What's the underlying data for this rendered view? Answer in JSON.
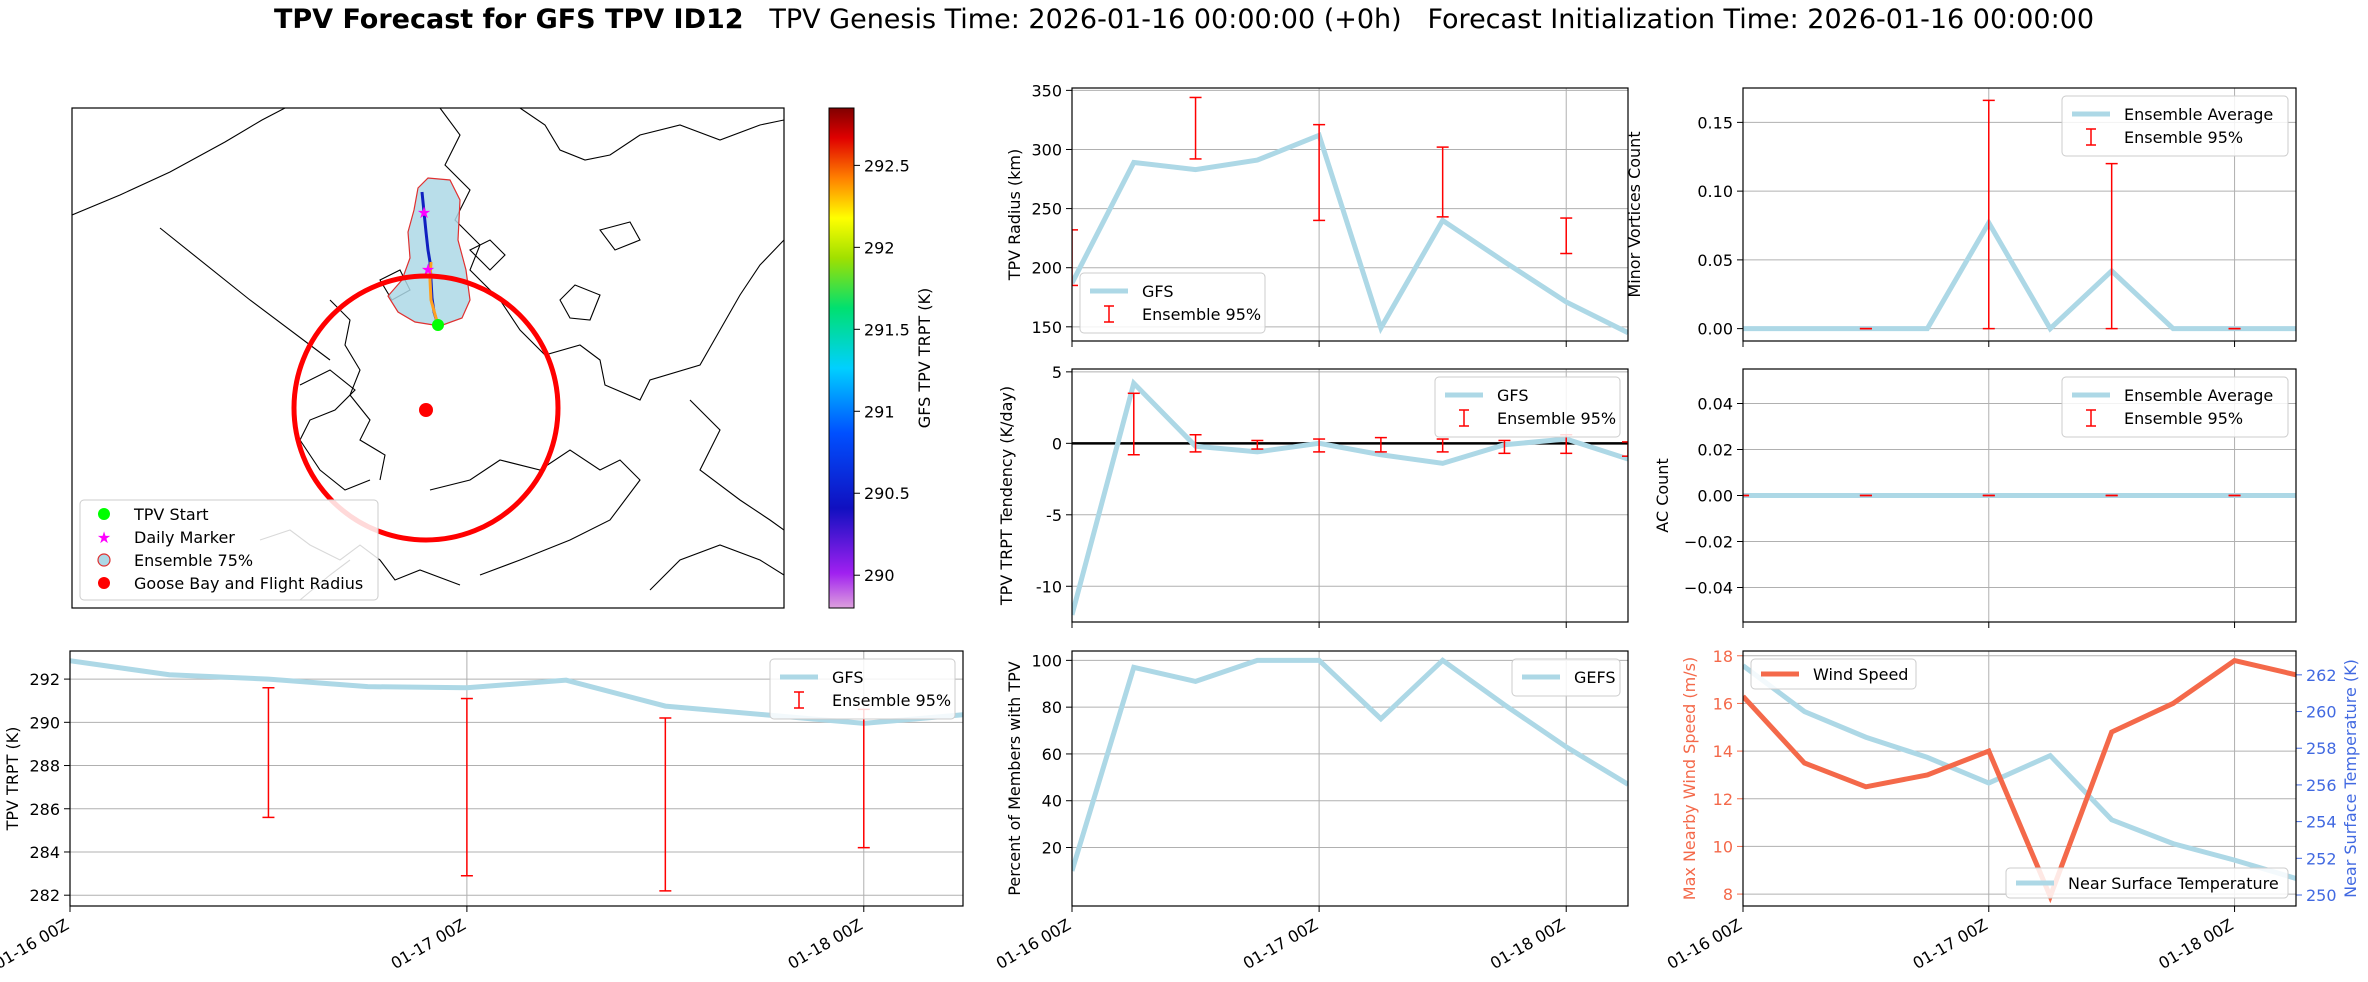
{
  "figure": {
    "title_bold": "TPV Forecast for GFS TPV ID12",
    "title_genesis": "TPV Genesis Time: 2026-01-16 00:00:00 (+0h)",
    "title_init": "Forecast Initialization Time: 2026-01-16 00:00:00"
  },
  "colors": {
    "gfs_line": "#add8e6",
    "ensemble_bar": "#ff0000",
    "wind": "#f4694a",
    "temperature_axis": "#4169e1",
    "flight_radius": "#ff0000",
    "tpv_start": "#00ff00",
    "daily_marker": "#ff00ff"
  },
  "chart_data": [
    {
      "id": "map",
      "type": "map",
      "colorbar": {
        "label": "GFS TPV TRPT (K)",
        "ticks": [
          290.0,
          290.5,
          291.0,
          291.5,
          292.0,
          292.5
        ],
        "range": [
          289.8,
          292.85
        ],
        "colormap": "rainbow"
      },
      "legend": {
        "position": "lower-left",
        "entries": [
          "TPV Start",
          "Daily Marker",
          "Ensemble 75%",
          "Goose Bay and Flight Radius"
        ]
      }
    },
    {
      "id": "radius",
      "type": "line",
      "xlabel": "",
      "ylabel": "TPV Radius (km)",
      "ylim": [
        138,
        352
      ],
      "yticks": [
        150,
        200,
        250,
        300,
        350
      ],
      "xlim": [
        0,
        54
      ],
      "series": [
        {
          "name": "GFS",
          "x": [
            0,
            6,
            12,
            18,
            24,
            30,
            36,
            42,
            48,
            54
          ],
          "values": [
            187,
            289,
            283,
            291,
            312,
            149,
            240,
            205,
            171,
            145
          ]
        }
      ],
      "errorbars": {
        "name": "Ensemble 95%",
        "x": [
          0,
          12,
          24,
          36,
          48
        ],
        "low": [
          185,
          292,
          240,
          243,
          212
        ],
        "high": [
          232,
          344,
          321,
          302,
          242
        ]
      },
      "legend": "lower-left",
      "grid": true
    },
    {
      "id": "minor",
      "type": "line",
      "xlabel": "",
      "ylabel": "Minor Vortices Count",
      "ylim": [
        -0.009,
        0.175
      ],
      "yticks": [
        0.0,
        0.05,
        0.1,
        0.15
      ],
      "ytick_labels": [
        "0.00",
        "0.05",
        "0.10",
        "0.15"
      ],
      "xlim": [
        0,
        54
      ],
      "series": [
        {
          "name": "Ensemble Average",
          "x": [
            0,
            6,
            12,
            18,
            24,
            30,
            36,
            42,
            48,
            54
          ],
          "values": [
            0,
            0,
            0,
            0,
            0.077,
            0,
            0.042,
            0,
            0,
            0
          ]
        }
      ],
      "errorbars": {
        "name": "Ensemble 95%",
        "x": [
          12,
          24,
          36,
          48
        ],
        "low": [
          0,
          0,
          0,
          0
        ],
        "high": [
          0,
          0.166,
          0.12,
          0
        ]
      },
      "legend": "top-right",
      "grid": true
    },
    {
      "id": "tendency",
      "type": "line",
      "xlabel": "",
      "ylabel": "TPV TRPT Tendency (K/day)",
      "ylim": [
        -12.5,
        5.2
      ],
      "yticks": [
        -10,
        -5,
        0,
        5
      ],
      "xlim": [
        0,
        54
      ],
      "zero_line": true,
      "series": [
        {
          "name": "GFS",
          "x": [
            0,
            6,
            12,
            18,
            24,
            30,
            36,
            42,
            48,
            54
          ],
          "values": [
            -12.0,
            4.2,
            -0.2,
            -0.6,
            0.0,
            -0.8,
            -1.4,
            -0.1,
            0.3,
            -1.1
          ]
        }
      ],
      "errorbars": {
        "name": "Ensemble 95%",
        "x": [
          6,
          12,
          18,
          24,
          30,
          36,
          42,
          48,
          54
        ],
        "low": [
          -0.8,
          -0.6,
          -0.4,
          -0.6,
          -0.6,
          -0.6,
          -0.7,
          -0.7,
          -0.9
        ],
        "high": [
          3.5,
          0.6,
          0.2,
          0.3,
          0.4,
          0.3,
          0.2,
          0.6,
          0.1
        ]
      },
      "legend": "top-right",
      "grid": true
    },
    {
      "id": "ac",
      "type": "line",
      "xlabel": "",
      "ylabel": "AC Count",
      "ylim": [
        -0.055,
        0.055
      ],
      "yticks": [
        -0.04,
        -0.02,
        0.0,
        0.02,
        0.04
      ],
      "ytick_labels": [
        "−0.04",
        "−0.02",
        "0.00",
        "0.02",
        "0.04"
      ],
      "xlim": [
        0,
        54
      ],
      "series": [
        {
          "name": "Ensemble Average",
          "x": [
            0,
            6,
            12,
            18,
            24,
            30,
            36,
            42,
            48,
            54
          ],
          "values": [
            0,
            0,
            0,
            0,
            0,
            0,
            0,
            0,
            0,
            0
          ]
        }
      ],
      "errorbars": {
        "name": "Ensemble 95%",
        "x": [
          0,
          12,
          24,
          36,
          48
        ],
        "low": [
          0,
          0,
          0,
          0,
          0
        ],
        "high": [
          0,
          0,
          0,
          0,
          0
        ]
      },
      "legend": "top-right",
      "grid": true
    },
    {
      "id": "trpt",
      "type": "line",
      "xlabel": "",
      "ylabel": "TPV TRPT (K)",
      "ylim": [
        281.5,
        293.3
      ],
      "yticks": [
        282,
        284,
        286,
        288,
        290,
        292
      ],
      "xlim": [
        0,
        54
      ],
      "xticks": [
        0,
        24,
        48
      ],
      "xtick_labels": [
        "01-16 00Z",
        "01-17 00Z",
        "01-18 00Z"
      ],
      "series": [
        {
          "name": "GFS",
          "x": [
            0,
            6,
            12,
            18,
            24,
            30,
            36,
            42,
            48,
            54
          ],
          "values": [
            292.85,
            292.2,
            292.0,
            291.65,
            291.6,
            291.95,
            290.75,
            290.35,
            289.95,
            290.35
          ]
        }
      ],
      "errorbars": {
        "name": "Ensemble 95%",
        "x": [
          12,
          24,
          36,
          48
        ],
        "low": [
          285.6,
          282.9,
          282.2,
          284.2
        ],
        "high": [
          291.6,
          291.1,
          290.2,
          290.6
        ]
      },
      "legend": "top-right",
      "grid": true
    },
    {
      "id": "percent",
      "type": "line",
      "xlabel": "",
      "ylabel": "Percent of Members with TPV",
      "ylim": [
        -5,
        104
      ],
      "yticks": [
        20,
        40,
        60,
        80,
        100
      ],
      "xlim": [
        0,
        54
      ],
      "xticks": [
        0,
        24,
        48
      ],
      "xtick_labels": [
        "01-16 00Z",
        "01-17 00Z",
        "01-18 00Z"
      ],
      "series": [
        {
          "name": "GEFS",
          "x": [
            0,
            6,
            12,
            18,
            24,
            30,
            36,
            42,
            48,
            54
          ],
          "values": [
            10,
            97,
            91,
            100,
            100,
            75,
            100,
            81,
            63,
            47
          ]
        }
      ],
      "legend": "top-right",
      "grid": true
    },
    {
      "id": "wind",
      "type": "line",
      "xlabel": "",
      "ylabel": "Max Nearby Wind Speed (m/s)",
      "ylim": [
        7.5,
        18.2
      ],
      "yticks": [
        8,
        10,
        12,
        14,
        16,
        18
      ],
      "ylabel_right": "Near Surface Temperature (K)",
      "ylim_right": [
        249.4,
        263.3
      ],
      "yticks_right": [
        250,
        252,
        254,
        256,
        258,
        260,
        262
      ],
      "xlim": [
        0,
        54
      ],
      "xticks": [
        0,
        24,
        48
      ],
      "xtick_labels": [
        "01-16 00Z",
        "01-17 00Z",
        "01-18 00Z"
      ],
      "series": [
        {
          "name": "Wind Speed",
          "axis": "left",
          "x": [
            0,
            6,
            12,
            18,
            24,
            30,
            36,
            42,
            48,
            54
          ],
          "values": [
            16.3,
            13.5,
            12.5,
            13.0,
            14.0,
            7.9,
            14.8,
            16.0,
            17.8,
            17.2
          ]
        },
        {
          "name": "Near Surface Temperature",
          "axis": "right",
          "x": [
            0,
            6,
            12,
            18,
            24,
            30,
            36,
            42,
            48,
            54
          ],
          "values": [
            262.5,
            260.0,
            258.6,
            257.5,
            256.1,
            257.6,
            254.1,
            252.8,
            251.9,
            250.9
          ]
        }
      ],
      "legend_left": "top-left",
      "legend_right": "bottom-right",
      "grid": true
    }
  ]
}
